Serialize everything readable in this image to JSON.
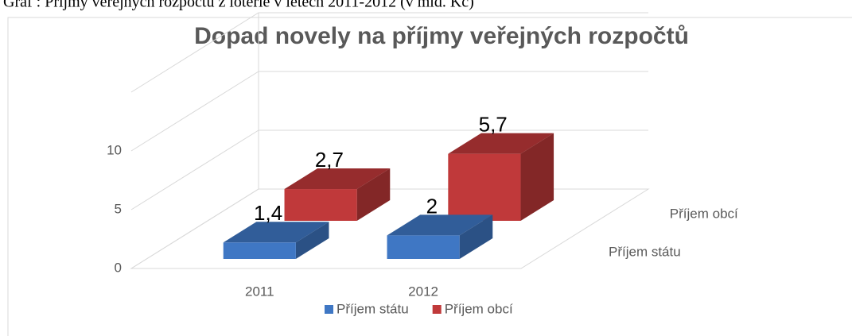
{
  "caption": "Graf : Příjmy veřejných rozpočtů z loterie v letech 2011-2012 (v mld. Kč)",
  "chart_data": {
    "type": "bar3d",
    "title": "Dopad novely na příjmy veřejných rozpočtů",
    "categories": [
      "2011",
      "2012"
    ],
    "series": [
      {
        "name": "Příjem státu",
        "color": "#3f77c4",
        "values": [
          1.4,
          2
        ],
        "value_labels": [
          "1,4",
          "2"
        ]
      },
      {
        "name": "Příjem obcí",
        "color": "#c0393a",
        "values": [
          2.7,
          5.7
        ],
        "value_labels": [
          "2,7",
          "5,7"
        ]
      }
    ],
    "ylim": [
      0,
      15
    ],
    "yticks": [
      0,
      5,
      10
    ],
    "grid": true,
    "legend": "bottom"
  }
}
